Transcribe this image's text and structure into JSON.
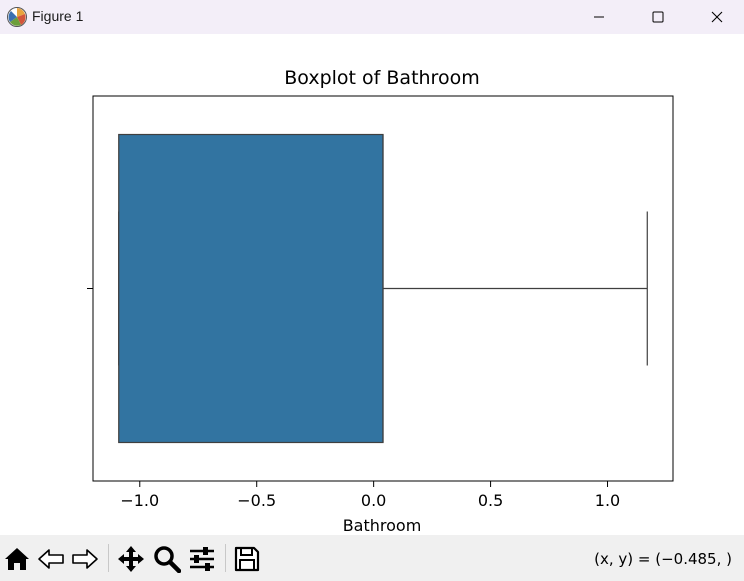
{
  "window": {
    "title": "Figure 1",
    "app_icon": "matplotlib-figure-icon",
    "controls": [
      "minimize-icon",
      "maximize-icon",
      "close-icon"
    ]
  },
  "chart_data": {
    "type": "box",
    "title": "Boxplot of Bathroom",
    "xlabel": "Bathroom",
    "ylabel": "",
    "orientation": "horizontal",
    "xlim": [
      -1.2,
      1.28
    ],
    "xticks": [
      -1.0,
      -0.5,
      0.0,
      0.5,
      1.0
    ],
    "xtick_labels": [
      "−1.0",
      "−0.5",
      "0.0",
      "0.5",
      "1.0"
    ],
    "grid": false,
    "series": [
      {
        "q1": -1.09,
        "median": 0.04,
        "q3": 0.04,
        "whisker_low": -1.09,
        "whisker_high": 1.17,
        "color": "#3274a1"
      }
    ]
  },
  "toolbar": {
    "tools": [
      "home-icon",
      "back-icon",
      "forward-icon",
      "pan-icon",
      "zoom-icon",
      "configure-subplots-icon",
      "save-icon"
    ],
    "coords": "(x, y) = (−0.485, )"
  }
}
